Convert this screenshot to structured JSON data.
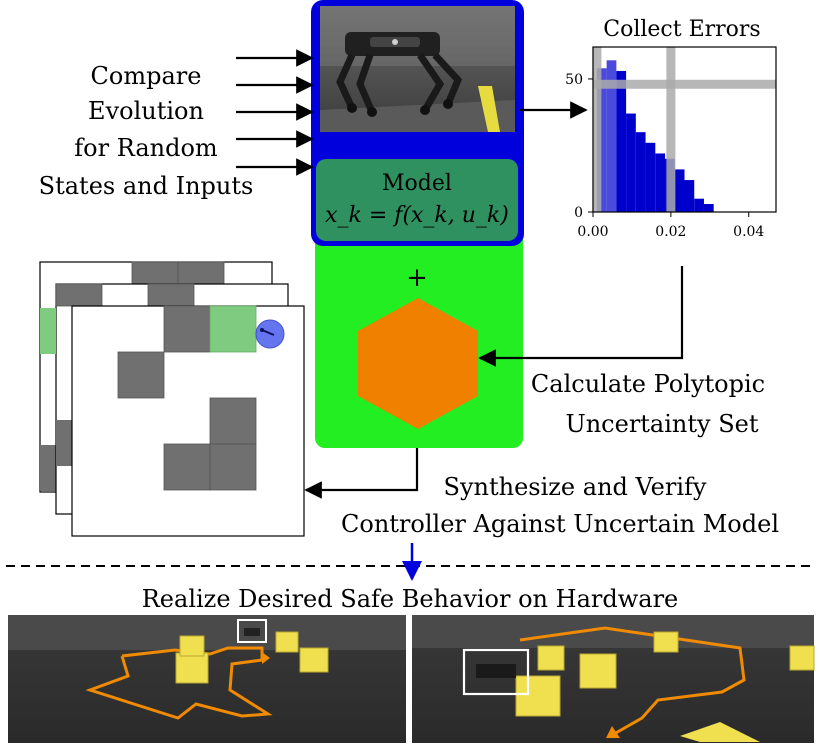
{
  "compare_label": {
    "lines": [
      "Compare",
      "Evolution",
      "for Random",
      "States and Inputs"
    ]
  },
  "model": {
    "title": "Model",
    "equation": "x_k = f(x_k, u_k)",
    "plus": "+"
  },
  "collect_errors": {
    "title": "Collect Errors"
  },
  "polytopic_label": {
    "lines": [
      "Calculate Polytopic",
      "Uncertainty Set"
    ]
  },
  "synthesize_label": {
    "lines": [
      "Synthesize and Verify",
      "Controller Against Uncertain Model"
    ]
  },
  "hardware_label": {
    "text": "Realize Desired Safe Behavior on Hardware"
  },
  "chart_data": {
    "type": "bar",
    "title": "Collect Errors",
    "xlabel": "",
    "ylabel": "",
    "xlim": [
      0.0,
      0.047
    ],
    "ylim": [
      0,
      62
    ],
    "x_ticks": [
      "0.00",
      "0.02",
      "0.04"
    ],
    "y_ticks": [
      "0",
      "50"
    ],
    "bin_edges": [
      0.001,
      0.0035,
      0.006,
      0.0085,
      0.011,
      0.0135,
      0.016,
      0.0185,
      0.021,
      0.0235,
      0.026,
      0.0285,
      0.031
    ],
    "values": [
      54,
      57,
      53,
      37,
      30,
      26,
      22,
      20,
      16,
      12,
      5,
      3
    ],
    "highlight_bars": [
      0,
      1
    ],
    "vertical_bands": [
      0.001,
      0.02
    ],
    "horizontal_band": 48,
    "bar_color": "#0000cc",
    "band_color": "#aaaaaa",
    "grid": true
  },
  "colors": {
    "model_border": "#0000dd",
    "model_fill": "#2f9060",
    "safe_fill": "#22ee22",
    "hexagon": "#f08000",
    "grid_obstacle": "#707070",
    "goal_cell": "#7fcc80",
    "robot_marker": "#5566ee",
    "path_orange": "#f08a00",
    "box_yellow": "#f0e050"
  },
  "icons": [
    "robot-dog-photo",
    "hardware-photo-left",
    "hardware-photo-right"
  ]
}
